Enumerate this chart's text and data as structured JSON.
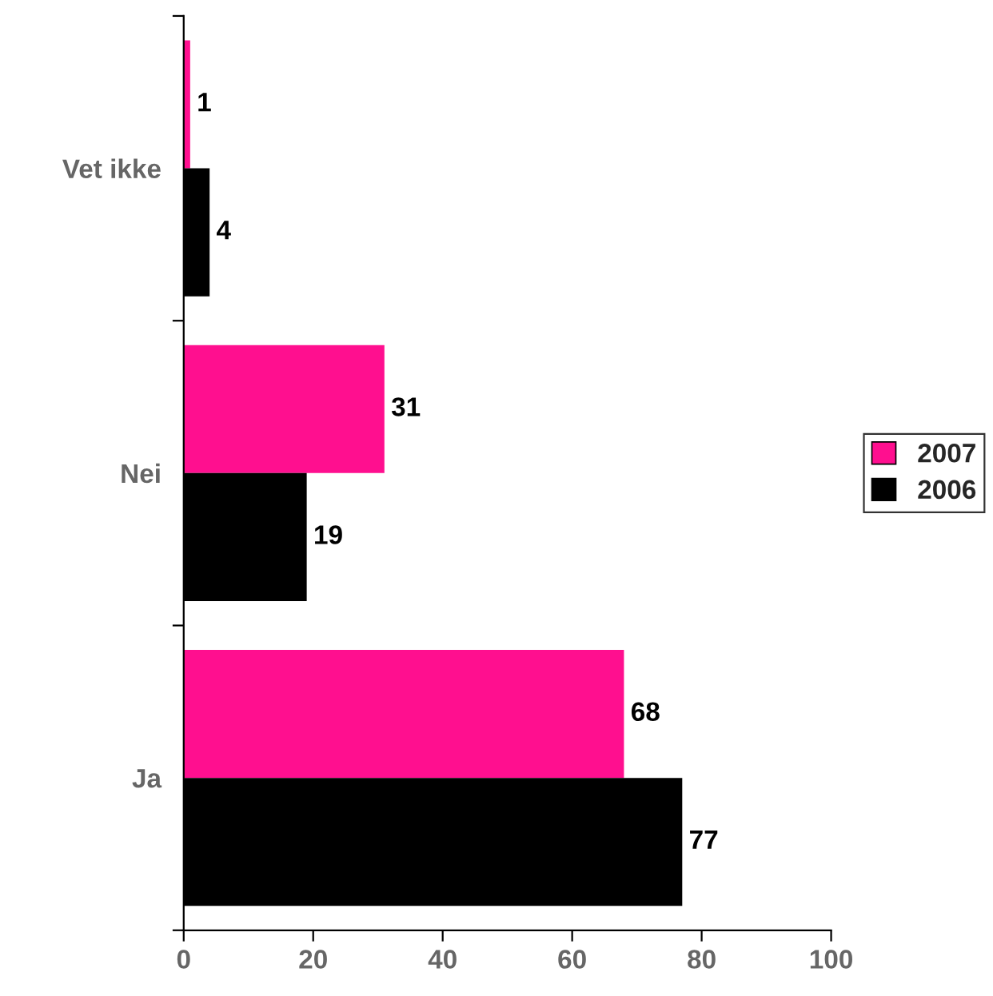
{
  "chart_data": {
    "type": "bar",
    "orientation": "horizontal",
    "categories": [
      "Vet ikke",
      "Nei",
      "Ja"
    ],
    "series": [
      {
        "name": "2007",
        "color": "#ff0f8f",
        "values": [
          1,
          31,
          68
        ]
      },
      {
        "name": "2006",
        "color": "#000000",
        "values": [
          4,
          19,
          77
        ]
      }
    ],
    "xlim": [
      0,
      100
    ],
    "xticks": [
      0,
      20,
      40,
      60,
      80,
      100
    ],
    "data_labels": true,
    "grid": false,
    "legend": "right"
  }
}
